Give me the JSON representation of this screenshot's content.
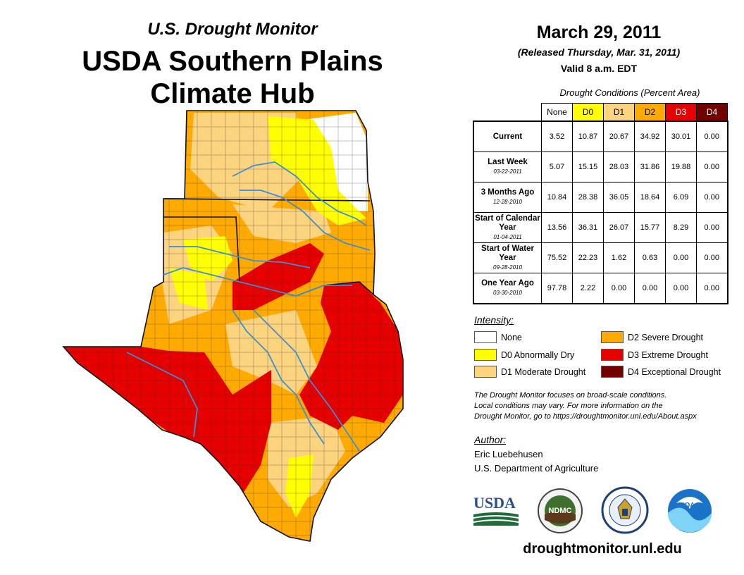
{
  "header": {
    "subtitle": "U.S. Drought Monitor",
    "title_line1": "USDA Southern Plains",
    "title_line2": "Climate Hub",
    "date": "March 29, 2011",
    "released": "(Released Thursday, Mar. 31, 2011)",
    "valid": "Valid 8 a.m. EDT"
  },
  "conditions_table": {
    "caption": "Drought Conditions (Percent Area)",
    "columns": [
      "None",
      "D0",
      "D1",
      "D2",
      "D3",
      "D4"
    ],
    "rows": [
      {
        "label": "Current",
        "date": "",
        "values": [
          "3.52",
          "10.87",
          "20.67",
          "34.92",
          "30.01",
          "0.00"
        ]
      },
      {
        "label": "Last Week",
        "date": "03-22-2011",
        "values": [
          "5.07",
          "15.15",
          "28.03",
          "31.86",
          "19.88",
          "0.00"
        ]
      },
      {
        "label": "3 Months Ago",
        "date": "12-28-2010",
        "values": [
          "10.84",
          "28.38",
          "36.05",
          "18.64",
          "6.09",
          "0.00"
        ]
      },
      {
        "label": "Start of Calendar Year",
        "date": "01-04-2011",
        "values": [
          "13.56",
          "36.31",
          "26.07",
          "15.77",
          "8.29",
          "0.00"
        ]
      },
      {
        "label": "Start of Water Year",
        "date": "09-28-2010",
        "values": [
          "75.52",
          "22.23",
          "1.62",
          "0.63",
          "0.00",
          "0.00"
        ]
      },
      {
        "label": "One Year Ago",
        "date": "03-30-2010",
        "values": [
          "97.78",
          "2.22",
          "0.00",
          "0.00",
          "0.00",
          "0.00"
        ]
      }
    ]
  },
  "legend": {
    "title": "Intensity:",
    "items": [
      {
        "label": "None",
        "color": "#ffffff"
      },
      {
        "label": "D0 Abnormally Dry",
        "color": "#ffff00"
      },
      {
        "label": "D1 Moderate Drought",
        "color": "#fcd37f"
      },
      {
        "label": "D2 Severe Drought",
        "color": "#ffaa00"
      },
      {
        "label": "D3 Extreme Drought",
        "color": "#e60000"
      },
      {
        "label": "D4 Exceptional Drought",
        "color": "#730000"
      }
    ]
  },
  "note": {
    "line1": "The Drought Monitor focuses on broad-scale conditions.",
    "line2": "Local conditions may vary. For more information on the",
    "line3": "Drought Monitor, go to https://droughtmonitor.unl.edu/About.aspx"
  },
  "author": {
    "title": "Author:",
    "name": "Eric Luebehusen",
    "org": "U.S. Department of Agriculture"
  },
  "logos": {
    "usda": "USDA",
    "ndmc": "NDMC",
    "noaa": "NOAA"
  },
  "footer": {
    "url": "droughtmonitor.unl.edu"
  },
  "colors": {
    "none": "#ffffff",
    "d0": "#ffff00",
    "d1": "#fcd37f",
    "d2": "#ffaa00",
    "d3": "#e60000",
    "d4": "#730000",
    "river": "#3a8fd9",
    "border": "#333333"
  }
}
